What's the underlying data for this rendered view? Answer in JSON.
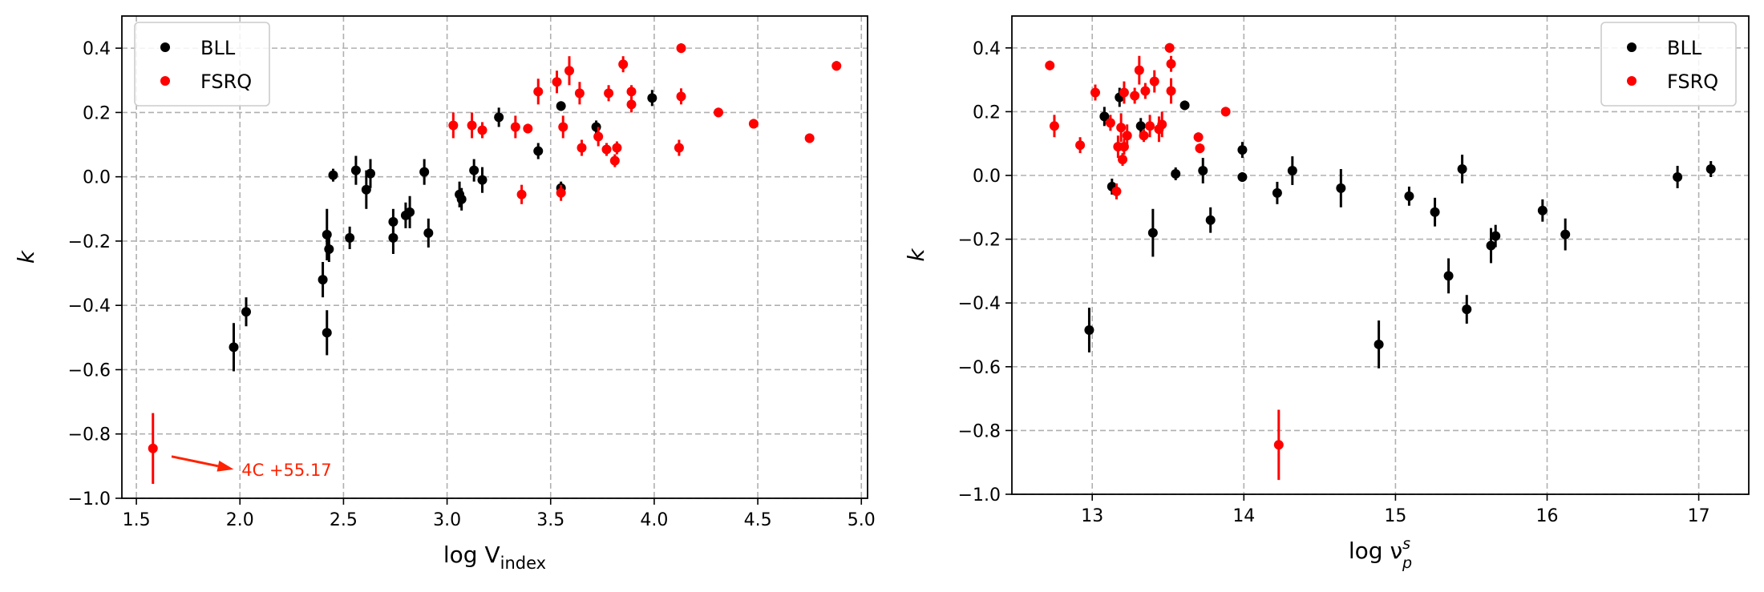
{
  "colors": {
    "bll": "#000000",
    "fsrq": "#ff0000",
    "grid": "#b0b0b0"
  },
  "chart_data": [
    {
      "type": "scatter",
      "xlabel": "log V",
      "xlabel_sub": "index",
      "ylabel": "k",
      "xlim": [
        1.43,
        5.03
      ],
      "ylim": [
        -1.0,
        0.5
      ],
      "xticks": [
        1.5,
        2.0,
        2.5,
        3.0,
        3.5,
        4.0,
        4.5,
        5.0
      ],
      "xtick_labels": [
        "1.5",
        "2.0",
        "2.5",
        "3.0",
        "3.5",
        "4.0",
        "4.5",
        "5.0"
      ],
      "yticks": [
        -1.0,
        -0.8,
        -0.6,
        -0.4,
        -0.2,
        0.0,
        0.2,
        0.4
      ],
      "ytick_labels": [
        "−1.0",
        "−0.8",
        "−0.6",
        "−0.4",
        "−0.2",
        "0.0",
        "0.2",
        "0.4"
      ],
      "grid": true,
      "legend_position": "top-left",
      "annotation": {
        "text": "4C +55.17",
        "color": "#ff2200",
        "arrow_from": [
          1.67,
          -0.87
        ],
        "arrow_to": [
          1.97,
          -0.91
        ],
        "text_at": [
          2.0,
          -0.91
        ]
      },
      "series": [
        {
          "name": "BLL",
          "color": "#000000",
          "points": [
            [
              1.97,
              -0.53,
              0.075
            ],
            [
              2.03,
              -0.42,
              0.045
            ],
            [
              2.4,
              -0.32,
              0.055
            ],
            [
              2.42,
              -0.18,
              0.08
            ],
            [
              2.43,
              -0.225,
              0.04
            ],
            [
              2.42,
              -0.485,
              0.07
            ],
            [
              2.45,
              0.005,
              0.02
            ],
            [
              2.53,
              -0.19,
              0.035
            ],
            [
              2.56,
              0.02,
              0.045
            ],
            [
              2.61,
              -0.04,
              0.06
            ],
            [
              2.63,
              0.01,
              0.045
            ],
            [
              2.74,
              -0.14,
              0.04
            ],
            [
              2.74,
              -0.19,
              0.05
            ],
            [
              2.8,
              -0.12,
              0.04
            ],
            [
              2.82,
              -0.11,
              0.05
            ],
            [
              2.89,
              0.015,
              0.04
            ],
            [
              2.91,
              -0.175,
              0.045
            ],
            [
              3.06,
              -0.055,
              0.04
            ],
            [
              3.07,
              -0.07,
              0.035
            ],
            [
              3.13,
              0.02,
              0.035
            ],
            [
              3.17,
              -0.01,
              0.04
            ],
            [
              3.25,
              0.185,
              0.03
            ],
            [
              3.44,
              0.08,
              0.025
            ],
            [
              3.55,
              0.22,
              0.015
            ],
            [
              3.55,
              -0.035,
              0.02
            ],
            [
              3.72,
              0.155,
              0.02
            ],
            [
              3.99,
              0.245,
              0.025
            ]
          ]
        },
        {
          "name": "FSRQ",
          "color": "#ff0000",
          "points": [
            [
              1.58,
              -0.845,
              0.11
            ],
            [
              3.03,
              0.16,
              0.04
            ],
            [
              3.12,
              0.16,
              0.04
            ],
            [
              3.17,
              0.145,
              0.025
            ],
            [
              3.33,
              0.155,
              0.035
            ],
            [
              3.36,
              -0.055,
              0.03
            ],
            [
              3.39,
              0.15,
              0.015
            ],
            [
              3.44,
              0.265,
              0.04
            ],
            [
              3.53,
              0.295,
              0.035
            ],
            [
              3.55,
              -0.05,
              0.025
            ],
            [
              3.56,
              0.155,
              0.035
            ],
            [
              3.59,
              0.33,
              0.045
            ],
            [
              3.64,
              0.26,
              0.035
            ],
            [
              3.65,
              0.09,
              0.025
            ],
            [
              3.73,
              0.125,
              0.03
            ],
            [
              3.77,
              0.085,
              0.02
            ],
            [
              3.78,
              0.26,
              0.025
            ],
            [
              3.81,
              0.05,
              0.02
            ],
            [
              3.82,
              0.09,
              0.02
            ],
            [
              3.85,
              0.35,
              0.025
            ],
            [
              3.89,
              0.225,
              0.025
            ],
            [
              3.89,
              0.265,
              0.02
            ],
            [
              4.13,
              0.4,
              0.015
            ],
            [
              4.13,
              0.25,
              0.025
            ],
            [
              4.12,
              0.09,
              0.025
            ],
            [
              4.31,
              0.2,
              0.015
            ],
            [
              4.48,
              0.165,
              0.015
            ],
            [
              4.75,
              0.12,
              0.015
            ],
            [
              4.88,
              0.345,
              0.015
            ]
          ]
        }
      ]
    },
    {
      "type": "scatter",
      "xlabel": "log ν",
      "xlabel_sup": "s",
      "xlabel_sub": "p",
      "ylabel": "k",
      "xlim": [
        12.47,
        17.33
      ],
      "ylim": [
        -1.0,
        0.5
      ],
      "xticks": [
        13,
        14,
        15,
        16,
        17
      ],
      "xtick_labels": [
        "13",
        "14",
        "15",
        "16",
        "17"
      ],
      "yticks": [
        -1.0,
        -0.8,
        -0.6,
        -0.4,
        -0.2,
        0.0,
        0.2,
        0.4
      ],
      "ytick_labels": [
        "−1.0",
        "−0.8",
        "−0.6",
        "−0.4",
        "−0.2",
        "0.0",
        "0.2",
        "0.4"
      ],
      "grid": true,
      "legend_position": "top-right",
      "series": [
        {
          "name": "BLL",
          "color": "#000000",
          "points": [
            [
              12.98,
              -0.485,
              0.07
            ],
            [
              13.08,
              0.185,
              0.03
            ],
            [
              13.13,
              -0.035,
              0.025
            ],
            [
              13.18,
              0.245,
              0.03
            ],
            [
              13.32,
              0.155,
              0.025
            ],
            [
              13.4,
              -0.18,
              0.075
            ],
            [
              13.55,
              0.005,
              0.02
            ],
            [
              13.61,
              0.22,
              0.015
            ],
            [
              13.73,
              0.015,
              0.04
            ],
            [
              13.78,
              -0.14,
              0.04
            ],
            [
              13.99,
              0.08,
              0.025
            ],
            [
              13.99,
              -0.005,
              0.015
            ],
            [
              14.22,
              -0.055,
              0.035
            ],
            [
              14.32,
              0.015,
              0.045
            ],
            [
              14.64,
              -0.04,
              0.06
            ],
            [
              14.89,
              -0.53,
              0.075
            ],
            [
              15.09,
              -0.065,
              0.03
            ],
            [
              15.26,
              -0.115,
              0.045
            ],
            [
              15.35,
              -0.315,
              0.055
            ],
            [
              15.44,
              0.02,
              0.045
            ],
            [
              15.47,
              -0.42,
              0.045
            ],
            [
              15.63,
              -0.22,
              0.055
            ],
            [
              15.66,
              -0.19,
              0.035
            ],
            [
              15.97,
              -0.11,
              0.035
            ],
            [
              16.12,
              -0.185,
              0.05
            ],
            [
              16.86,
              -0.005,
              0.035
            ],
            [
              17.08,
              0.02,
              0.025
            ]
          ]
        },
        {
          "name": "FSRQ",
          "color": "#ff0000",
          "points": [
            [
              12.72,
              0.345,
              0.015
            ],
            [
              12.75,
              0.155,
              0.035
            ],
            [
              12.92,
              0.095,
              0.025
            ],
            [
              13.02,
              0.26,
              0.025
            ],
            [
              13.12,
              0.165,
              0.025
            ],
            [
              13.16,
              -0.05,
              0.025
            ],
            [
              13.17,
              0.09,
              0.035
            ],
            [
              13.19,
              0.15,
              0.045
            ],
            [
              13.2,
              0.05,
              0.02
            ],
            [
              13.21,
              0.26,
              0.035
            ],
            [
              13.21,
              0.09,
              0.025
            ],
            [
              13.23,
              0.125,
              0.035
            ],
            [
              13.28,
              0.25,
              0.025
            ],
            [
              13.31,
              0.33,
              0.045
            ],
            [
              13.34,
              0.125,
              0.02
            ],
            [
              13.35,
              0.265,
              0.025
            ],
            [
              13.38,
              0.155,
              0.035
            ],
            [
              13.41,
              0.295,
              0.035
            ],
            [
              13.44,
              0.145,
              0.04
            ],
            [
              13.46,
              0.16,
              0.04
            ],
            [
              13.51,
              0.4,
              0.015
            ],
            [
              13.52,
              0.35,
              0.025
            ],
            [
              13.52,
              0.265,
              0.04
            ],
            [
              13.7,
              0.12,
              0.015
            ],
            [
              13.71,
              0.085,
              0.015
            ],
            [
              13.88,
              0.2,
              0.015
            ],
            [
              14.23,
              -0.845,
              0.11
            ]
          ]
        }
      ]
    }
  ]
}
